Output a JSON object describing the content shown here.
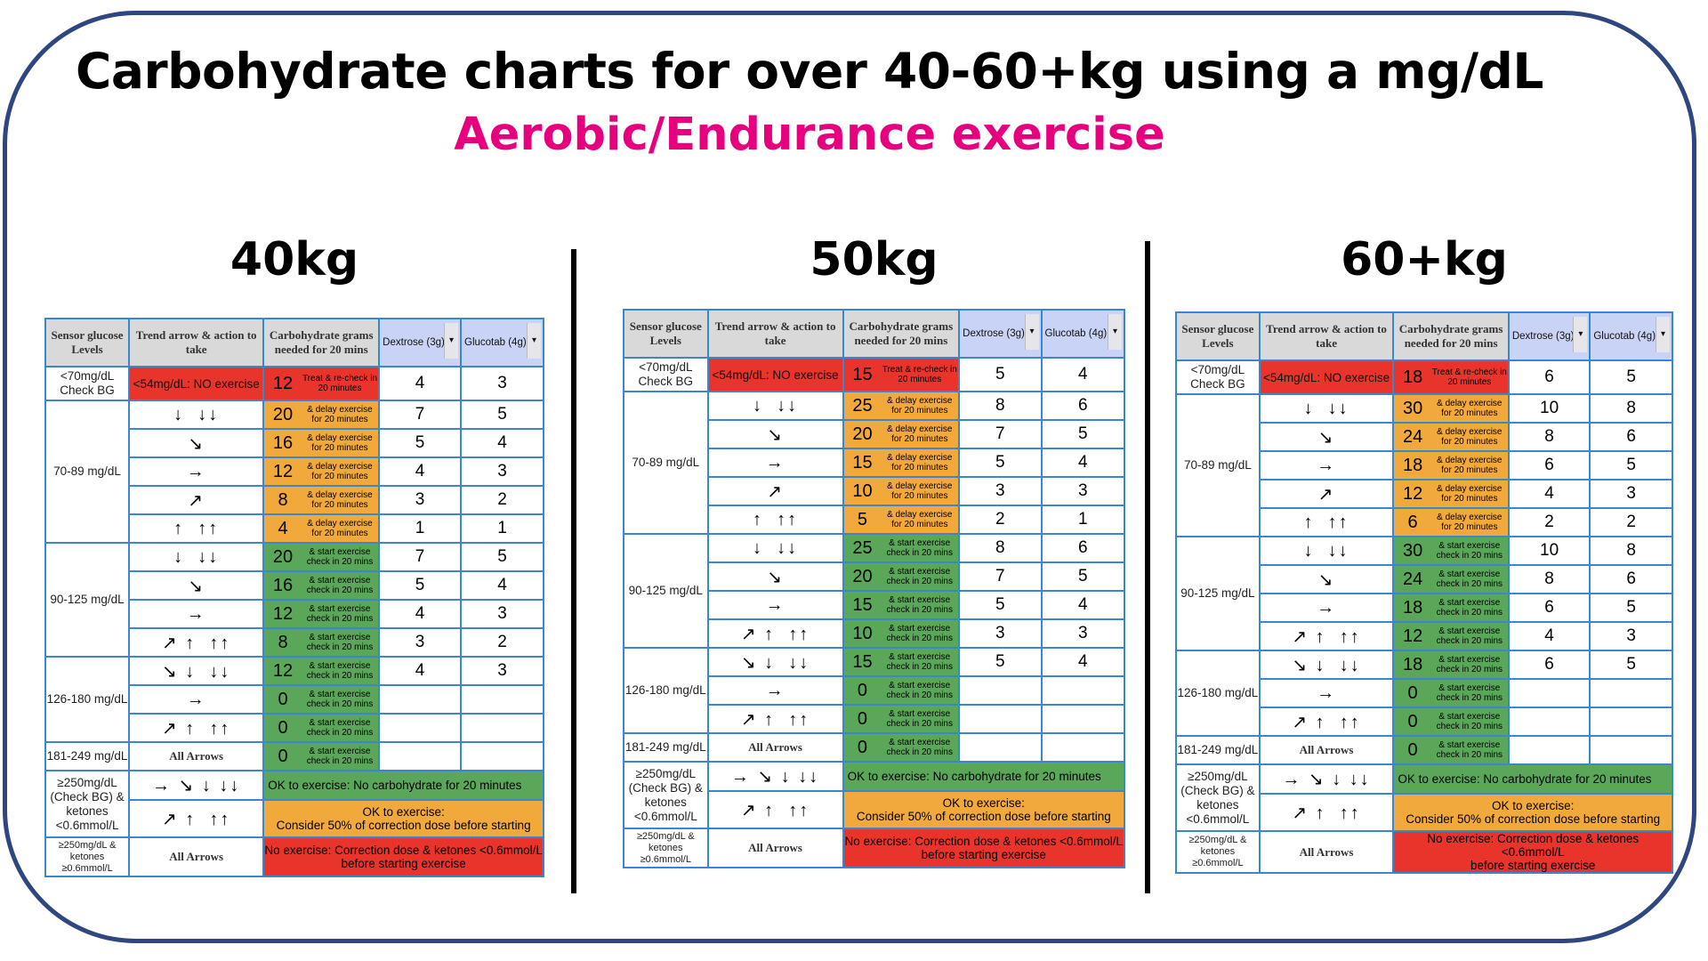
{
  "title": "Carbohydrate charts for over 40-60+kg using a mg/dL",
  "subtitle": "Aerobic/Endurance exercise",
  "colors": {
    "title_accent": "#e6007e",
    "red": "#e8342a",
    "orange": "#f2a93b",
    "green": "#5aa75a",
    "header_gray": "#d9d9d9",
    "header_blue": "#c9d3f5",
    "border": "#3a87d0"
  },
  "headers": {
    "levels": "Sensor glucose Levels",
    "trend": "Trend arrow & action to take",
    "carbs": "Carbohydrate grams needed for 20 mins",
    "dextrose": "Dextrose (3g)",
    "glucotab": "Glucotab (4g)",
    "dropdown_icon": "▾"
  },
  "groups": {
    "lt70": "<70mg/dL Check BG",
    "g70": "70-89 mg/dL",
    "g90": "90-125 mg/dL",
    "g126": "126-180 mg/dL",
    "g181": "181-249 mg/dL",
    "g250": "≥250mg/dL (Check BG) & ketones <0.6mmol/L",
    "g250k": "≥250mg/dL & ketones ≥0.6mmol/L"
  },
  "arrows": {
    "down_set": "↓  ↓↓",
    "diag_down": "↘",
    "flat": "→",
    "diag_up": "↗",
    "up_set": "↑  ↑↑",
    "up_all": "↗ ↑  ↑↑",
    "down_all": "↘ ↓  ↓↓",
    "ok_down": "→ ↘ ↓ ↓↓",
    "all": "All Arrows"
  },
  "texts": {
    "no_exercise": "<54mg/dL: NO exercise",
    "treat": "Treat & re-check in 20 minutes",
    "delay": "& delay exercise for 20 minutes",
    "start": "& start exercise check in 20 mins",
    "ok_green": "OK to exercise: No carbohydrate for 20 minutes",
    "ok_orange": "OK to exercise:\nConsider 50% of correction dose before starting",
    "no_exercise_ketones": "No exercise: Correction dose & ketones <0.6mmol/L\nbefore starting exercise"
  },
  "charts": [
    {
      "weight": "40kg",
      "lt70": [
        12,
        4,
        3
      ],
      "g70": [
        [
          20,
          7,
          5
        ],
        [
          16,
          5,
          4
        ],
        [
          12,
          4,
          3
        ],
        [
          8,
          3,
          2
        ],
        [
          4,
          1,
          1
        ]
      ],
      "g90": [
        [
          20,
          7,
          5
        ],
        [
          16,
          5,
          4
        ],
        [
          12,
          4,
          3
        ],
        [
          8,
          3,
          2
        ]
      ],
      "g126": [
        [
          12,
          4,
          3
        ],
        [
          0,
          "",
          ""
        ],
        [
          0,
          "",
          ""
        ]
      ],
      "g181": [
        0,
        "",
        ""
      ]
    },
    {
      "weight": "50kg",
      "lt70": [
        15,
        5,
        4
      ],
      "g70": [
        [
          25,
          8,
          6
        ],
        [
          20,
          7,
          5
        ],
        [
          15,
          5,
          4
        ],
        [
          10,
          3,
          3
        ],
        [
          5,
          2,
          1
        ]
      ],
      "g90": [
        [
          25,
          8,
          6
        ],
        [
          20,
          7,
          5
        ],
        [
          15,
          5,
          4
        ],
        [
          10,
          3,
          3
        ]
      ],
      "g126": [
        [
          15,
          5,
          4
        ],
        [
          0,
          "",
          ""
        ],
        [
          0,
          "",
          ""
        ]
      ],
      "g181": [
        0,
        "",
        ""
      ]
    },
    {
      "weight": "60+kg",
      "lt70": [
        18,
        6,
        5
      ],
      "g70": [
        [
          30,
          10,
          8
        ],
        [
          24,
          8,
          6
        ],
        [
          18,
          6,
          5
        ],
        [
          12,
          4,
          3
        ],
        [
          6,
          2,
          2
        ]
      ],
      "g90": [
        [
          30,
          10,
          8
        ],
        [
          24,
          8,
          6
        ],
        [
          18,
          6,
          5
        ],
        [
          12,
          4,
          3
        ]
      ],
      "g126": [
        [
          18,
          6,
          5
        ],
        [
          0,
          "",
          ""
        ],
        [
          0,
          "",
          ""
        ]
      ],
      "g181": [
        0,
        "",
        ""
      ]
    }
  ]
}
